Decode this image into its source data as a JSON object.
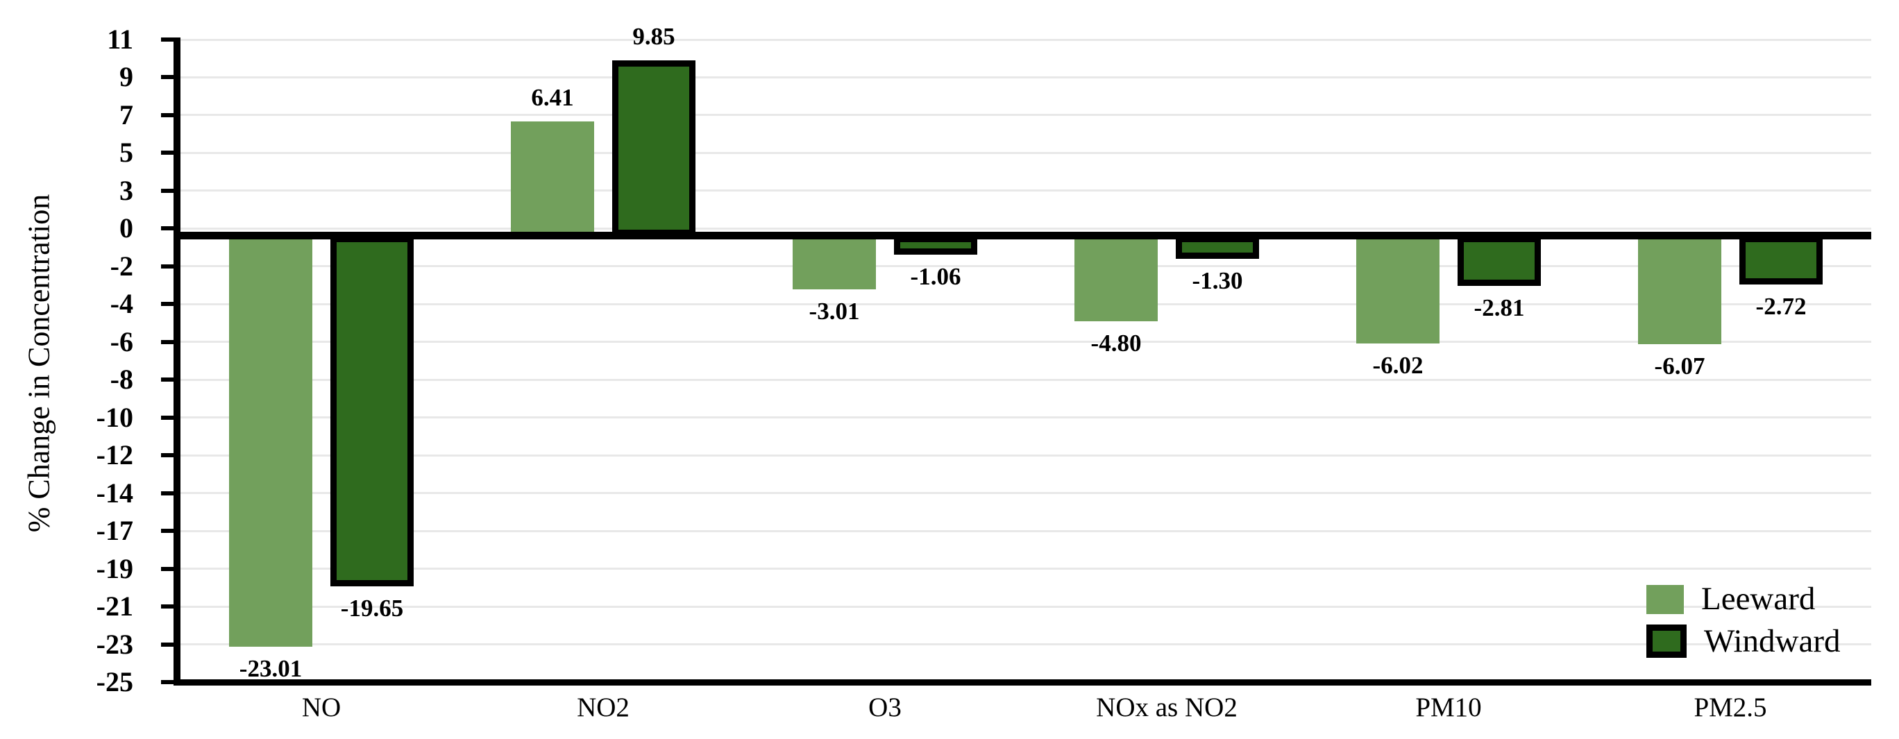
{
  "chart_data": {
    "type": "bar",
    "title": "",
    "xlabel": "",
    "ylabel": "% Change in Concentration",
    "categories": [
      "NO",
      "NO2",
      "O3",
      "NOx as NO2",
      "PM10",
      "PM2.5"
    ],
    "series": [
      {
        "name": "Leeward",
        "color": "#72A05C",
        "bordered": false,
        "values": [
          -23.01,
          6.41,
          -3.01,
          -4.8,
          -6.02,
          -6.07
        ],
        "labels": [
          "-23.01",
          "6.41",
          "-3.01",
          "-4.80",
          "-6.02",
          "-6.07"
        ]
      },
      {
        "name": "Windward",
        "color": "#2F6B1E",
        "bordered": true,
        "border_color": "#000000",
        "values": [
          -19.65,
          9.85,
          -1.06,
          -1.3,
          -2.81,
          -2.72
        ],
        "labels": [
          "-19.65",
          "9.85",
          "-1.06",
          "-1.30",
          "-2.81",
          "-2.72"
        ]
      }
    ],
    "y_axis": {
      "min": -25,
      "max": 11,
      "tick_labels": [
        "11",
        "9",
        "7",
        "5",
        "3",
        "0",
        "-2",
        "-4",
        "-6",
        "-8",
        "-10",
        "-12",
        "-14",
        "-17",
        "-19",
        "-21",
        "-23",
        "-25"
      ]
    },
    "legend": {
      "position": "bottom-right",
      "entries": [
        "Leeward",
        "Windward"
      ]
    },
    "grid": true,
    "zero_line": true,
    "colors": {
      "grid": "#e8e8e8",
      "axis": "#000000",
      "background": "#ffffff"
    }
  }
}
